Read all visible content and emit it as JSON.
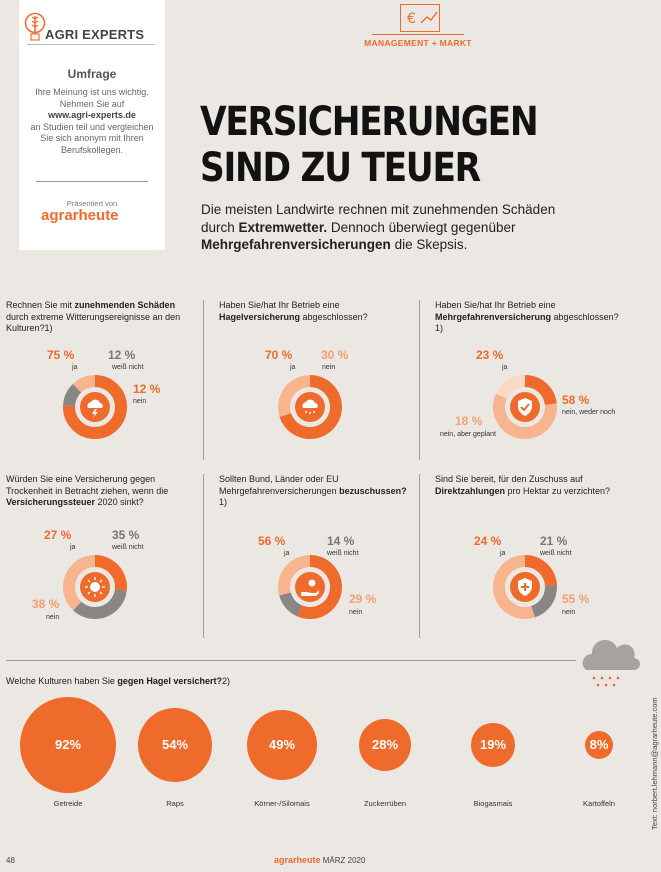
{
  "sidebar": {
    "logo_text": "AGRI EXPERTS",
    "heading": "Umfrage",
    "text_1": "Ihre Meinung ist uns wichtig. Nehmen Sie auf",
    "url": "www.agri-experts.de",
    "text_2": "an Studien teil und vergleichen Sie sich anonym mit Ihren Berufskollegen.",
    "presented_by": "Präsentiert von",
    "brand": "agrarheute"
  },
  "header": {
    "section_label": "MANAGEMENT + MARKT",
    "title_line1": "VERSICHERUNGEN",
    "title_line2": "SIND ZU TEUER",
    "lead_1": "Die meisten Landwirte rechnen mit zunehmenden Schäden durch ",
    "lead_2": "Extremwetter.",
    "lead_3": " Dennoch überwiegt gegenüber ",
    "lead_4": "Mehrgefahrenversicherungen",
    "lead_5": " die Skepsis."
  },
  "colors": {
    "accent": "#ef6b2c",
    "accent_light": "#f7b48d",
    "grey": "#8a8683",
    "background": "#ebe7e3"
  },
  "chart_data": [
    {
      "type": "pie",
      "title": "Rechnen Sie mit zunehmenden Schäden durch extreme Witterungsereignisse an den Kulturen?1)",
      "icon": "storm-cloud-icon",
      "slices": [
        {
          "value": 75,
          "label": "75 %",
          "name": "ja",
          "color": "#ef6b2c"
        },
        {
          "value": 12,
          "label": "12 %",
          "name": "weiß nicht",
          "color": "#8a8683"
        },
        {
          "value": 12,
          "label": "12 %",
          "name": "nein",
          "color": "#f7b48d"
        }
      ]
    },
    {
      "type": "pie",
      "title": "Haben Sie/hat Ihr Betrieb eine Hagelversicherung abgeschlossen?",
      "icon": "hail-cloud-icon",
      "slices": [
        {
          "value": 70,
          "label": "70 %",
          "name": "ja",
          "color": "#ef6b2c"
        },
        {
          "value": 30,
          "label": "30 %",
          "name": "nein",
          "color": "#f7b48d"
        }
      ]
    },
    {
      "type": "pie",
      "title": "Haben Sie/hat Ihr Betrieb eine Mehrgefahrenversicherung abgeschlossen?1)",
      "icon": "shield-check-icon",
      "slices": [
        {
          "value": 23,
          "label": "23 %",
          "name": "ja",
          "color": "#ef6b2c"
        },
        {
          "value": 58,
          "label": "58 %",
          "name": "nein, weder noch",
          "color": "#f7b48d"
        },
        {
          "value": 18,
          "label": "18 %",
          "name": "nein, aber geplant",
          "color": "#fbd9c4"
        }
      ]
    },
    {
      "type": "pie",
      "title": "Würden Sie eine Versicherung gegen Trockenheit in Betracht ziehen, wenn die Versicherungssteuer 2020 sinkt?",
      "icon": "sun-icon",
      "slices": [
        {
          "value": 27,
          "label": "27 %",
          "name": "ja",
          "color": "#ef6b2c"
        },
        {
          "value": 35,
          "label": "35 %",
          "name": "weiß nicht",
          "color": "#8a8683"
        },
        {
          "value": 38,
          "label": "38 %",
          "name": "nein",
          "color": "#f7b48d"
        }
      ]
    },
    {
      "type": "pie",
      "title": "Sollten Bund, Länder oder EU Mehrgefahrenversicherungen bezuschussen?1)",
      "icon": "hand-person-icon",
      "slices": [
        {
          "value": 56,
          "label": "56 %",
          "name": "ja",
          "color": "#ef6b2c"
        },
        {
          "value": 14,
          "label": "14 %",
          "name": "weiß nicht",
          "color": "#8a8683"
        },
        {
          "value": 29,
          "label": "29 %",
          "name": "nein",
          "color": "#f7b48d"
        }
      ]
    },
    {
      "type": "pie",
      "title": "Sind Sie bereit, für den Zuschuss auf Direktzahlungen pro Hektar zu verzichten?",
      "icon": "shield-plus-icon",
      "slices": [
        {
          "value": 24,
          "label": "24 %",
          "name": "ja",
          "color": "#ef6b2c"
        },
        {
          "value": 21,
          "label": "21 %",
          "name": "weiß nicht",
          "color": "#8a8683"
        },
        {
          "value": 55,
          "label": "55 %",
          "name": "nein",
          "color": "#f7b48d"
        }
      ]
    },
    {
      "type": "bubble",
      "title": "Welche Kulturen haben Sie gegen Hagel versichert?2)",
      "categories": [
        "Getreide",
        "Raps",
        "Körner-/Silomais",
        "Zuckerrüben",
        "Biogasmais",
        "Kartoffeln"
      ],
      "values": [
        92,
        54,
        49,
        28,
        19,
        8
      ],
      "value_labels": [
        "92%",
        "54%",
        "49%",
        "28%",
        "19%",
        "8%"
      ],
      "unit": "%"
    }
  ],
  "questions": {
    "q1": {
      "pre": "Rechnen Sie mit ",
      "bold": "zunehmenden Schäden",
      "post": " durch extreme Witterungsereignisse an den Kulturen?1)"
    },
    "q2": {
      "pre": "Haben Sie/hat Ihr Betrieb eine ",
      "bold": "Hagelversicherung",
      "post": " abgeschlossen?"
    },
    "q3": {
      "pre": "Haben Sie/hat Ihr Betrieb eine ",
      "bold": "Mehrgefahrenversicherung",
      "post": " abgeschlossen?1)"
    },
    "q4": {
      "pre": "Würden Sie eine Versicherung gegen Trockenheit in Betracht ziehen, wenn die ",
      "bold": "Versicherungssteuer",
      "post": " 2020 sinkt?"
    },
    "q5": {
      "pre": "Sollten Bund, Länder oder EU Mehrgefahrenversicherungen ",
      "bold": "bezuschussen?",
      "post": "1)"
    },
    "q6": {
      "pre": "Sind Sie bereit, für den Zuschuss auf ",
      "bold": "Direktzahlungen",
      "post": " pro Hektar zu verzichten?"
    },
    "q7": {
      "pre": "Welche Kulturen haben Sie ",
      "bold": "gegen Hagel versichert?",
      "post": "2)"
    }
  },
  "footer": {
    "page": "48",
    "brand": "agrarheute",
    "issue": " MÄRZ 2020",
    "credit": "Text: norbert.lehmann@agrarheute.com"
  }
}
